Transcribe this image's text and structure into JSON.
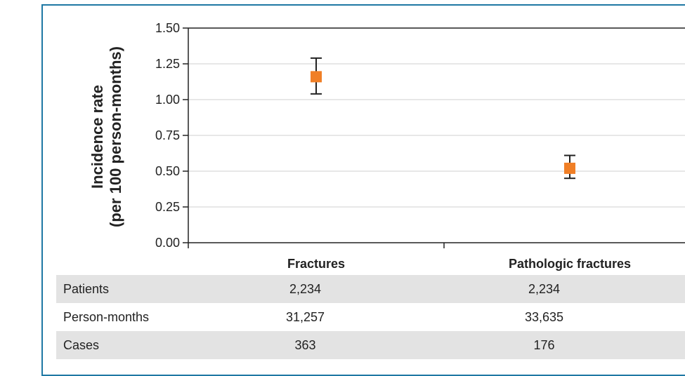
{
  "chart_data": {
    "type": "scatter",
    "categories": [
      "Fractures",
      "Pathologic fractures"
    ],
    "series": [
      {
        "values": [
          1.16,
          0.52
        ],
        "ci_low": [
          1.04,
          0.45
        ],
        "ci_high": [
          1.29,
          0.61
        ],
        "color": "#f07f26"
      }
    ],
    "ylabel_line1": "Incidence rate",
    "ylabel_line2": "(per 100 person-months)",
    "ylim": [
      0,
      1.5
    ],
    "yticks": [
      "0.00",
      "0.25",
      "0.50",
      "0.75",
      "1.00",
      "1.25",
      "1.50"
    ],
    "grid": true
  },
  "table": {
    "rows": [
      {
        "label": "Patients",
        "values": [
          "2,234",
          "2,234"
        ]
      },
      {
        "label": "Person-months",
        "values": [
          "31,257",
          "33,635"
        ]
      },
      {
        "label": "Cases",
        "values": [
          "363",
          "176"
        ]
      }
    ]
  },
  "colors": {
    "frame": "#1f78a4",
    "marker": "#f07f26",
    "shade": "#e3e3e3"
  }
}
